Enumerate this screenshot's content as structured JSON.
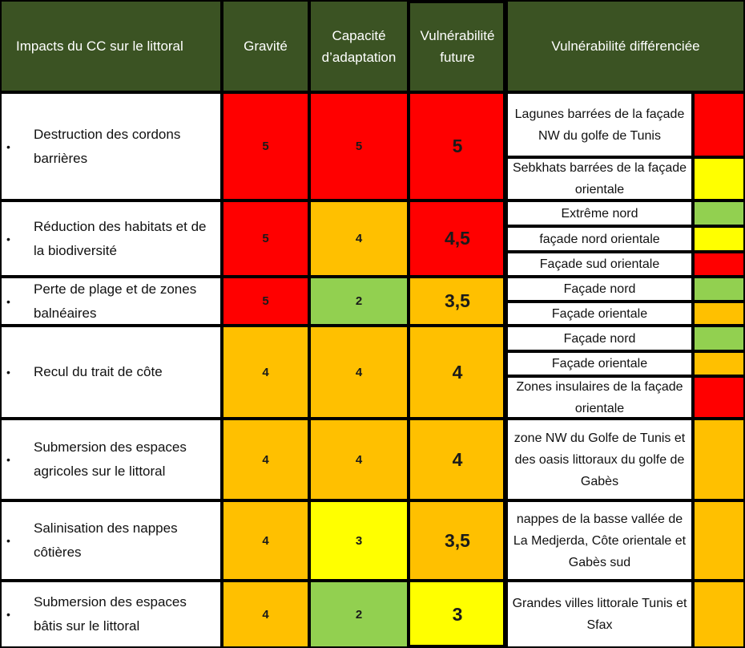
{
  "colors": {
    "red": "#ff0000",
    "orange": "#ffc000",
    "yellow": "#ffff00",
    "green": "#92d050",
    "header": "#3b5323"
  },
  "headers": {
    "impacts": "Impacts du CC sur le littoral",
    "gravite": "Gravité",
    "capacite": "Capacité\nd’adaptation",
    "vulnerabilite": "Vulnérabilité\nfuture",
    "differenciee": "Vulnérabilité différenciée"
  },
  "rows": [
    {
      "impact": "Destruction des cordons barrières",
      "gravite": "5",
      "gravite_color": "red",
      "capacite": "5",
      "capacite_color": "red",
      "vulnerabilite": "5",
      "vulnerabilite_color": "red",
      "zones": [
        {
          "label": "Lagunes barrées de la façade NW du golfe de Tunis",
          "color": "red"
        },
        {
          "label": "Sebkhats barrées de la façade orientale",
          "color": "yellow"
        }
      ]
    },
    {
      "impact": "Réduction des habitats et de la biodiversité",
      "gravite": "5",
      "gravite_color": "red",
      "capacite": "4",
      "capacite_color": "orange",
      "vulnerabilite": "4,5",
      "vulnerabilite_color": "red",
      "zones": [
        {
          "label": "Extrême nord",
          "color": "green"
        },
        {
          "label": "façade nord orientale",
          "color": "yellow"
        },
        {
          "label": "Façade sud orientale",
          "color": "red"
        }
      ]
    },
    {
      "impact": "Perte de plage et de zones balnéaires",
      "gravite": "5",
      "gravite_color": "red",
      "capacite": "2",
      "capacite_color": "green",
      "vulnerabilite": "3,5",
      "vulnerabilite_color": "orange",
      "zones": [
        {
          "label": "Façade nord",
          "color": "green"
        },
        {
          "label": "Façade orientale",
          "color": "orange"
        }
      ]
    },
    {
      "impact": "Recul du trait de côte",
      "gravite": "4",
      "gravite_color": "orange",
      "capacite": "4",
      "capacite_color": "orange",
      "vulnerabilite": "4",
      "vulnerabilite_color": "orange",
      "zones": [
        {
          "label": "Façade nord",
          "color": "green"
        },
        {
          "label": "Façade orientale",
          "color": "orange"
        },
        {
          "label": "Zones insulaires de la façade orientale",
          "color": "red"
        }
      ]
    },
    {
      "impact": "Submersion des espaces agricoles sur le littoral",
      "gravite": "4",
      "gravite_color": "orange",
      "capacite": "4",
      "capacite_color": "orange",
      "vulnerabilite": "4",
      "vulnerabilite_color": "orange",
      "zones": [
        {
          "label": "zone NW du Golfe de Tunis et des oasis littoraux du golfe de Gabès",
          "color": "orange"
        }
      ]
    },
    {
      "impact": "Salinisation des nappes côtières",
      "gravite": "4",
      "gravite_color": "orange",
      "capacite": "3",
      "capacite_color": "yellow",
      "vulnerabilite": "3,5",
      "vulnerabilite_color": "orange",
      "zones": [
        {
          "label": "nappes de la basse vallée de La Medjerda, Côte orientale et Gabès sud",
          "color": "orange"
        }
      ]
    },
    {
      "impact": "Submersion des espaces bâtis sur le littoral",
      "gravite": "4",
      "gravite_color": "orange",
      "capacite": "2",
      "capacite_color": "green",
      "vulnerabilite": "3",
      "vulnerabilite_color": "yellow",
      "zones": [
        {
          "label": "Grandes villes littorale Tunis et Sfax",
          "color": "orange"
        }
      ]
    }
  ]
}
